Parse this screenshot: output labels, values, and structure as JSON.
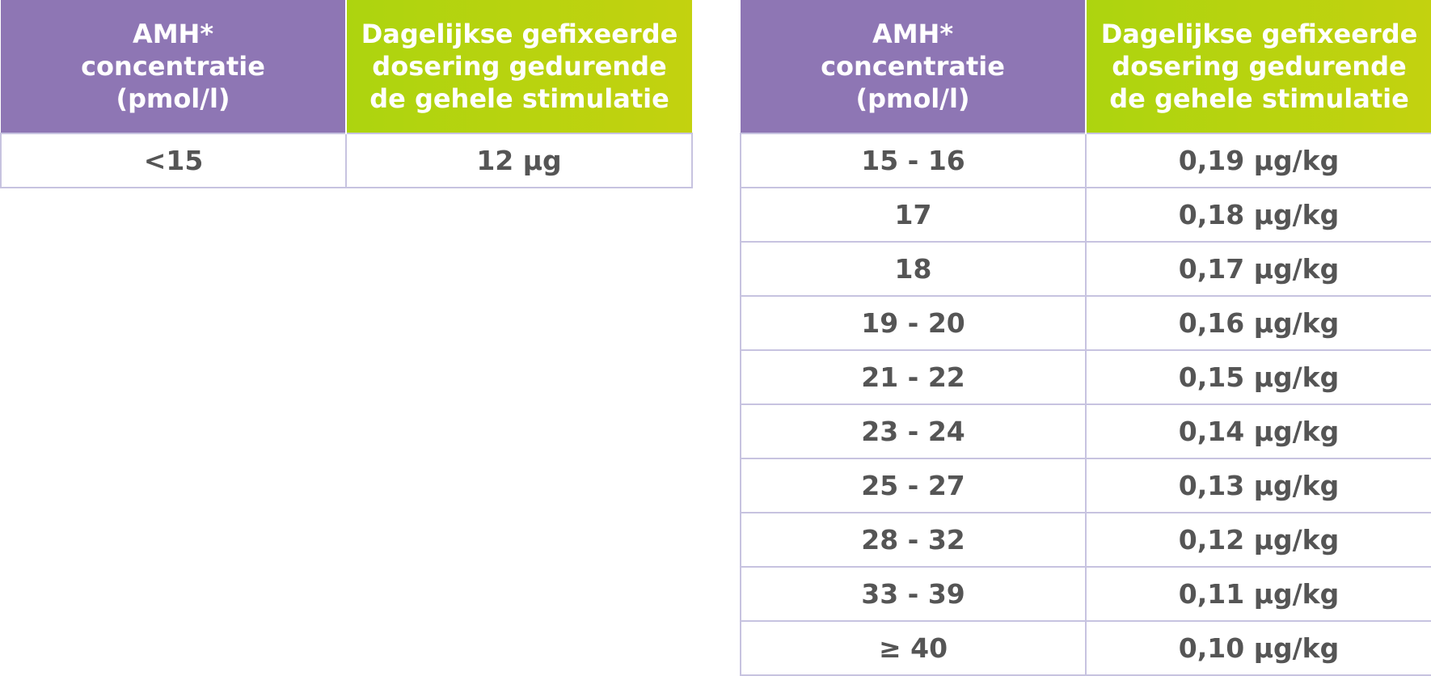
{
  "header": {
    "amh": [
      "AMH*",
      "concentratie",
      "(pmol/l)"
    ],
    "dose": [
      "Dagelijkse gefixeerde",
      "dosering gedurende",
      "de gehele stimulatie"
    ]
  },
  "left_table": {
    "rows": [
      {
        "amh": "<15",
        "dose": "12 µg"
      }
    ]
  },
  "right_table": {
    "rows": [
      {
        "amh": "15 - 16",
        "dose": "0,19 µg/kg"
      },
      {
        "amh": "17",
        "dose": "0,18 µg/kg"
      },
      {
        "amh": "18",
        "dose": "0,17 µg/kg"
      },
      {
        "amh": "19 - 20",
        "dose": "0,16 µg/kg"
      },
      {
        "amh": "21 - 22",
        "dose": "0,15 µg/kg"
      },
      {
        "amh": "23 - 24",
        "dose": "0,14 µg/kg"
      },
      {
        "amh": "25 - 27",
        "dose": "0,13 µg/kg"
      },
      {
        "amh": "28 - 32",
        "dose": "0,12 µg/kg"
      },
      {
        "amh": "33 - 39",
        "dose": "0,11 µg/kg"
      },
      {
        "amh": "≥ 40",
        "dose": "0,10 µg/kg"
      }
    ]
  },
  "colors": {
    "header_purple": "#8e76b4",
    "header_green": "#bcd110",
    "border": "#c7c3e0",
    "text": "#555555"
  }
}
